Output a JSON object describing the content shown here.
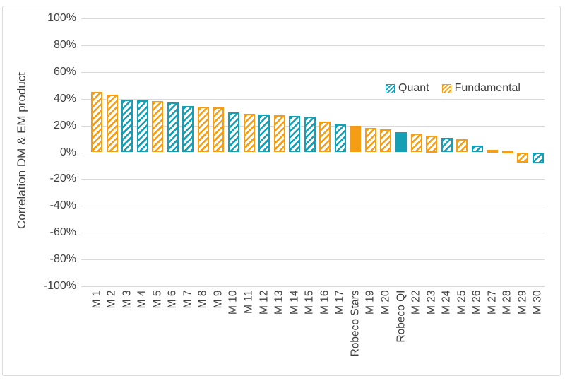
{
  "chart_data": {
    "type": "bar",
    "title": "",
    "ylabel": "Correlation DM & EM product",
    "xlabel": "",
    "ylim": [
      -100,
      100
    ],
    "ytick_step": 20,
    "ytick_labels": [
      "100%",
      "80%",
      "60%",
      "40%",
      "20%",
      "0%",
      "-20%",
      "-40%",
      "-60%",
      "-80%",
      "-100%"
    ],
    "grid": true,
    "legend_position": "inside-upper-right",
    "legend": [
      {
        "name": "Quant",
        "color": "#149FB4",
        "pattern": "diagonal-hatch"
      },
      {
        "name": "Fundamental",
        "color": "#F59D15",
        "pattern": "diagonal-hatch"
      }
    ],
    "categories": [
      "M 1",
      "M 2",
      "M 3",
      "M 4",
      "M 5",
      "M 6",
      "M 7",
      "M 8",
      "M 9",
      "M 10",
      "M 11",
      "M 12",
      "M 13",
      "M 14",
      "M 15",
      "M 16",
      "M 17",
      "Robeco Stars",
      "M 19",
      "M 20",
      "Robeco QI",
      "M 22",
      "M 23",
      "M 24",
      "M 25",
      "M 26",
      "M 27",
      "M 28",
      "M 29",
      "M 30"
    ],
    "values": [
      45,
      43,
      39,
      38.5,
      38,
      37,
      34.5,
      34,
      33.5,
      30,
      28.5,
      28,
      27.5,
      27,
      26.5,
      23,
      21,
      20,
      18,
      17,
      15,
      14,
      12.5,
      11,
      10,
      5,
      2,
      1.5,
      -7.5,
      -8
    ],
    "bar_groups": [
      "Fundamental",
      "Fundamental",
      "Quant",
      "Quant",
      "Fundamental",
      "Quant",
      "Quant",
      "Fundamental",
      "Fundamental",
      "Quant",
      "Fundamental",
      "Quant",
      "Fundamental",
      "Quant",
      "Quant",
      "Fundamental",
      "Quant",
      "Fundamental",
      "Fundamental",
      "Fundamental",
      "Quant",
      "Fundamental",
      "Fundamental",
      "Quant",
      "Fundamental",
      "Quant",
      "Fundamental",
      "Fundamental",
      "Fundamental",
      "Quant"
    ],
    "solid_bars": [
      "Robeco Stars",
      "Robeco QI"
    ]
  }
}
